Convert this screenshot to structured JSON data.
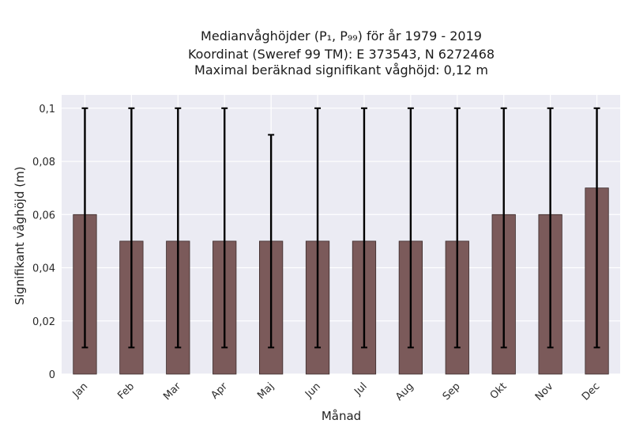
{
  "chart_data": {
    "type": "bar",
    "title_lines": [
      "Medianvåghöjder (P₁, P₉₉) för år 1979 - 2019",
      "Koordinat (Sweref 99 TM): E 373543, N 6272468",
      "Maximal beräknad signifikant våghöjd: 0,12 m"
    ],
    "xlabel": "Månad",
    "ylabel": "Signifikant våghöjd (m)",
    "categories": [
      "Jan",
      "Feb",
      "Mar",
      "Apr",
      "Maj",
      "Jun",
      "Jul",
      "Aug",
      "Sep",
      "Okt",
      "Nov",
      "Dec"
    ],
    "values": [
      0.06,
      0.05,
      0.05,
      0.05,
      0.05,
      0.05,
      0.05,
      0.05,
      0.05,
      0.06,
      0.06,
      0.07
    ],
    "err_low": [
      0.01,
      0.01,
      0.01,
      0.01,
      0.01,
      0.01,
      0.01,
      0.01,
      0.01,
      0.01,
      0.01,
      0.01
    ],
    "err_high": [
      0.1,
      0.1,
      0.1,
      0.1,
      0.09,
      0.1,
      0.1,
      0.1,
      0.1,
      0.1,
      0.1,
      0.1
    ],
    "ylim": [
      0,
      0.105
    ],
    "yticks": [
      0,
      0.02,
      0.04,
      0.06,
      0.08,
      0.1
    ],
    "ytick_labels": [
      "0",
      "0,02",
      "0,04",
      "0,06",
      "0,08",
      "0,1"
    ],
    "grid": true,
    "colors": {
      "plot_background": "#ebebf3",
      "grid": "#ffffff",
      "bar_fill": "#7b5a5a",
      "bar_edge": "#3a2a2a",
      "error_bar": "#000000"
    }
  }
}
